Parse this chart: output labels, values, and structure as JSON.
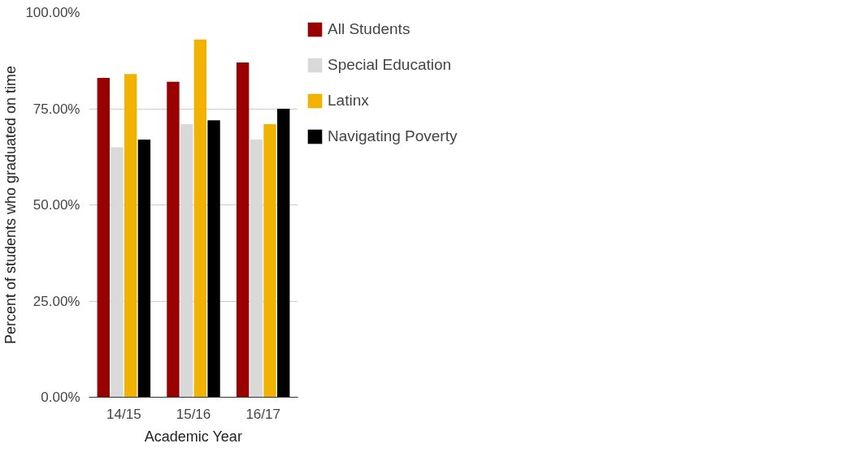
{
  "chart_data": {
    "type": "bar",
    "xlabel": "Academic Year",
    "ylabel": "Percent of students who graduated on time",
    "categories": [
      "14/15",
      "15/16",
      "16/17"
    ],
    "series": [
      {
        "name": "All Students",
        "color": "#990000",
        "values": [
          83,
          82,
          87
        ]
      },
      {
        "name": "Special Education",
        "color": "#d9d9d9",
        "values": [
          65,
          71,
          67
        ]
      },
      {
        "name": "Latinx",
        "color": "#f1b300",
        "values": [
          84,
          93,
          71
        ]
      },
      {
        "name": "Navigating Poverty",
        "color": "#000000",
        "values": [
          67,
          72,
          75
        ]
      }
    ],
    "ylim": [
      0,
      100
    ],
    "yticks": [
      {
        "value": 0,
        "label": "0.00%"
      },
      {
        "value": 25,
        "label": "25.00%"
      },
      {
        "value": 50,
        "label": "50.00%"
      },
      {
        "value": 75,
        "label": "75.00%"
      },
      {
        "value": 100,
        "label": "100.00%"
      }
    ],
    "grid": "y",
    "legend": "top right"
  }
}
